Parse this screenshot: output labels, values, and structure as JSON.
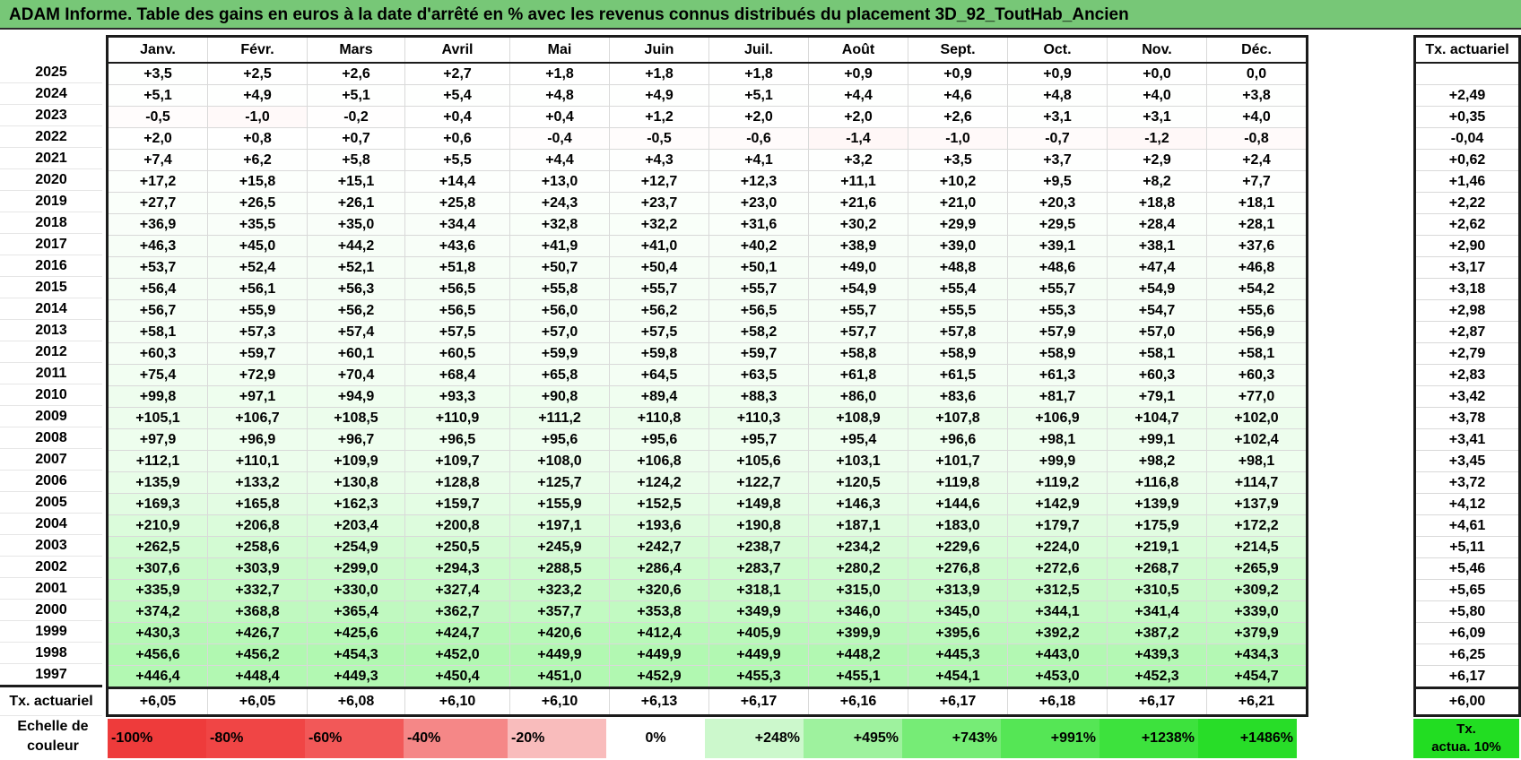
{
  "title": "ADAM Informe. Table des gains en euros à la date d'arrêté en % avec les revenus connus distribués du placement 3D_92_ToutHab_Ancien",
  "months": [
    "Janv.",
    "Févr.",
    "Mars",
    "Avril",
    "Mai",
    "Juin",
    "Juil.",
    "Août",
    "Sept.",
    "Oct.",
    "Nov.",
    "Déc."
  ],
  "rate_header": "Tx. actuariel",
  "rows": [
    {
      "year": "2025",
      "values": [
        "+3,5",
        "+2,5",
        "+2,6",
        "+2,7",
        "+1,8",
        "+1,8",
        "+1,8",
        "+0,9",
        "+0,9",
        "+0,9",
        "+0,0",
        "0,0"
      ],
      "rate": ""
    },
    {
      "year": "2024",
      "values": [
        "+5,1",
        "+4,9",
        "+5,1",
        "+5,4",
        "+4,8",
        "+4,9",
        "+5,1",
        "+4,4",
        "+4,6",
        "+4,8",
        "+4,0",
        "+3,8"
      ],
      "rate": "+2,49"
    },
    {
      "year": "2023",
      "values": [
        "-0,5",
        "-1,0",
        "-0,2",
        "+0,4",
        "+0,4",
        "+1,2",
        "+2,0",
        "+2,0",
        "+2,6",
        "+3,1",
        "+3,1",
        "+4,0"
      ],
      "rate": "+0,35"
    },
    {
      "year": "2022",
      "values": [
        "+2,0",
        "+0,8",
        "+0,7",
        "+0,6",
        "-0,4",
        "-0,5",
        "-0,6",
        "-1,4",
        "-1,0",
        "-0,7",
        "-1,2",
        "-0,8"
      ],
      "rate": "-0,04"
    },
    {
      "year": "2021",
      "values": [
        "+7,4",
        "+6,2",
        "+5,8",
        "+5,5",
        "+4,4",
        "+4,3",
        "+4,1",
        "+3,2",
        "+3,5",
        "+3,7",
        "+2,9",
        "+2,4"
      ],
      "rate": "+0,62"
    },
    {
      "year": "2020",
      "values": [
        "+17,2",
        "+15,8",
        "+15,1",
        "+14,4",
        "+13,0",
        "+12,7",
        "+12,3",
        "+11,1",
        "+10,2",
        "+9,5",
        "+8,2",
        "+7,7"
      ],
      "rate": "+1,46"
    },
    {
      "year": "2019",
      "values": [
        "+27,7",
        "+26,5",
        "+26,1",
        "+25,8",
        "+24,3",
        "+23,7",
        "+23,0",
        "+21,6",
        "+21,0",
        "+20,3",
        "+18,8",
        "+18,1"
      ],
      "rate": "+2,22"
    },
    {
      "year": "2018",
      "values": [
        "+36,9",
        "+35,5",
        "+35,0",
        "+34,4",
        "+32,8",
        "+32,2",
        "+31,6",
        "+30,2",
        "+29,9",
        "+29,5",
        "+28,4",
        "+28,1"
      ],
      "rate": "+2,62"
    },
    {
      "year": "2017",
      "values": [
        "+46,3",
        "+45,0",
        "+44,2",
        "+43,6",
        "+41,9",
        "+41,0",
        "+40,2",
        "+38,9",
        "+39,0",
        "+39,1",
        "+38,1",
        "+37,6"
      ],
      "rate": "+2,90"
    },
    {
      "year": "2016",
      "values": [
        "+53,7",
        "+52,4",
        "+52,1",
        "+51,8",
        "+50,7",
        "+50,4",
        "+50,1",
        "+49,0",
        "+48,8",
        "+48,6",
        "+47,4",
        "+46,8"
      ],
      "rate": "+3,17"
    },
    {
      "year": "2015",
      "values": [
        "+56,4",
        "+56,1",
        "+56,3",
        "+56,5",
        "+55,8",
        "+55,7",
        "+55,7",
        "+54,9",
        "+55,4",
        "+55,7",
        "+54,9",
        "+54,2"
      ],
      "rate": "+3,18"
    },
    {
      "year": "2014",
      "values": [
        "+56,7",
        "+55,9",
        "+56,2",
        "+56,5",
        "+56,0",
        "+56,2",
        "+56,5",
        "+55,7",
        "+55,5",
        "+55,3",
        "+54,7",
        "+55,6"
      ],
      "rate": "+2,98"
    },
    {
      "year": "2013",
      "values": [
        "+58,1",
        "+57,3",
        "+57,4",
        "+57,5",
        "+57,0",
        "+57,5",
        "+58,2",
        "+57,7",
        "+57,8",
        "+57,9",
        "+57,0",
        "+56,9"
      ],
      "rate": "+2,87"
    },
    {
      "year": "2012",
      "values": [
        "+60,3",
        "+59,7",
        "+60,1",
        "+60,5",
        "+59,9",
        "+59,8",
        "+59,7",
        "+58,8",
        "+58,9",
        "+58,9",
        "+58,1",
        "+58,1"
      ],
      "rate": "+2,79"
    },
    {
      "year": "2011",
      "values": [
        "+75,4",
        "+72,9",
        "+70,4",
        "+68,4",
        "+65,8",
        "+64,5",
        "+63,5",
        "+61,8",
        "+61,5",
        "+61,3",
        "+60,3",
        "+60,3"
      ],
      "rate": "+2,83"
    },
    {
      "year": "2010",
      "values": [
        "+99,8",
        "+97,1",
        "+94,9",
        "+93,3",
        "+90,8",
        "+89,4",
        "+88,3",
        "+86,0",
        "+83,6",
        "+81,7",
        "+79,1",
        "+77,0"
      ],
      "rate": "+3,42"
    },
    {
      "year": "2009",
      "values": [
        "+105,1",
        "+106,7",
        "+108,5",
        "+110,9",
        "+111,2",
        "+110,8",
        "+110,3",
        "+108,9",
        "+107,8",
        "+106,9",
        "+104,7",
        "+102,0"
      ],
      "rate": "+3,78"
    },
    {
      "year": "2008",
      "values": [
        "+97,9",
        "+96,9",
        "+96,7",
        "+96,5",
        "+95,6",
        "+95,6",
        "+95,7",
        "+95,4",
        "+96,6",
        "+98,1",
        "+99,1",
        "+102,4"
      ],
      "rate": "+3,41"
    },
    {
      "year": "2007",
      "values": [
        "+112,1",
        "+110,1",
        "+109,9",
        "+109,7",
        "+108,0",
        "+106,8",
        "+105,6",
        "+103,1",
        "+101,7",
        "+99,9",
        "+98,2",
        "+98,1"
      ],
      "rate": "+3,45"
    },
    {
      "year": "2006",
      "values": [
        "+135,9",
        "+133,2",
        "+130,8",
        "+128,8",
        "+125,7",
        "+124,2",
        "+122,7",
        "+120,5",
        "+119,8",
        "+119,2",
        "+116,8",
        "+114,7"
      ],
      "rate": "+3,72"
    },
    {
      "year": "2005",
      "values": [
        "+169,3",
        "+165,8",
        "+162,3",
        "+159,7",
        "+155,9",
        "+152,5",
        "+149,8",
        "+146,3",
        "+144,6",
        "+142,9",
        "+139,9",
        "+137,9"
      ],
      "rate": "+4,12"
    },
    {
      "year": "2004",
      "values": [
        "+210,9",
        "+206,8",
        "+203,4",
        "+200,8",
        "+197,1",
        "+193,6",
        "+190,8",
        "+187,1",
        "+183,0",
        "+179,7",
        "+175,9",
        "+172,2"
      ],
      "rate": "+4,61"
    },
    {
      "year": "2003",
      "values": [
        "+262,5",
        "+258,6",
        "+254,9",
        "+250,5",
        "+245,9",
        "+242,7",
        "+238,7",
        "+234,2",
        "+229,6",
        "+224,0",
        "+219,1",
        "+214,5"
      ],
      "rate": "+5,11"
    },
    {
      "year": "2002",
      "values": [
        "+307,6",
        "+303,9",
        "+299,0",
        "+294,3",
        "+288,5",
        "+286,4",
        "+283,7",
        "+280,2",
        "+276,8",
        "+272,6",
        "+268,7",
        "+265,9"
      ],
      "rate": "+5,46"
    },
    {
      "year": "2001",
      "values": [
        "+335,9",
        "+332,7",
        "+330,0",
        "+327,4",
        "+323,2",
        "+320,6",
        "+318,1",
        "+315,0",
        "+313,9",
        "+312,5",
        "+310,5",
        "+309,2"
      ],
      "rate": "+5,65"
    },
    {
      "year": "2000",
      "values": [
        "+374,2",
        "+368,8",
        "+365,4",
        "+362,7",
        "+357,7",
        "+353,8",
        "+349,9",
        "+346,0",
        "+345,0",
        "+344,1",
        "+341,4",
        "+339,0"
      ],
      "rate": "+5,80"
    },
    {
      "year": "1999",
      "values": [
        "+430,3",
        "+426,7",
        "+425,6",
        "+424,7",
        "+420,6",
        "+412,4",
        "+405,9",
        "+399,9",
        "+395,6",
        "+392,2",
        "+387,2",
        "+379,9"
      ],
      "rate": "+6,09"
    },
    {
      "year": "1998",
      "values": [
        "+456,6",
        "+456,2",
        "+454,3",
        "+452,0",
        "+449,9",
        "+449,9",
        "+449,9",
        "+448,2",
        "+445,3",
        "+443,0",
        "+439,3",
        "+434,3"
      ],
      "rate": "+6,25"
    },
    {
      "year": "1997",
      "values": [
        "+446,4",
        "+448,4",
        "+449,3",
        "+450,4",
        "+451,0",
        "+452,9",
        "+455,3",
        "+455,1",
        "+454,1",
        "+453,0",
        "+452,3",
        "+454,7"
      ],
      "rate": "+6,17"
    }
  ],
  "footer": {
    "label": "Tx. actuariel",
    "values": [
      "+6,05",
      "+6,05",
      "+6,08",
      "+6,10",
      "+6,10",
      "+6,13",
      "+6,17",
      "+6,16",
      "+6,17",
      "+6,18",
      "+6,17",
      "+6,21"
    ],
    "rate": "+6,00"
  },
  "scale": {
    "label_line1": "Echelle de",
    "label_line2": "couleur",
    "items": [
      {
        "label": "-100%",
        "color": "#ee3b3b",
        "kind": "neg"
      },
      {
        "label": "-80%",
        "color": "#f04545",
        "kind": "neg"
      },
      {
        "label": "-60%",
        "color": "#f25858",
        "kind": "neg"
      },
      {
        "label": "-40%",
        "color": "#f58787",
        "kind": "neg"
      },
      {
        "label": "-20%",
        "color": "#f9bcbc",
        "kind": "neg"
      },
      {
        "label": "0%",
        "color": "#ffffff",
        "kind": "zero"
      },
      {
        "label": "+248%",
        "color": "#ccf8cc",
        "kind": "pos"
      },
      {
        "label": "+495%",
        "color": "#9ef29e",
        "kind": "pos"
      },
      {
        "label": "+743%",
        "color": "#76ec76",
        "kind": "pos"
      },
      {
        "label": "+991%",
        "color": "#55e655",
        "kind": "pos"
      },
      {
        "label": "+1238%",
        "color": "#3de23d",
        "kind": "pos"
      },
      {
        "label": "+1486%",
        "color": "#28dd28",
        "kind": "pos"
      }
    ],
    "end_line1": "Tx.",
    "end_line2": "actua. 10%",
    "end_color": "#22dd22"
  },
  "colors": {
    "title_bg": "#77c777",
    "border": "#1b1b1b"
  }
}
